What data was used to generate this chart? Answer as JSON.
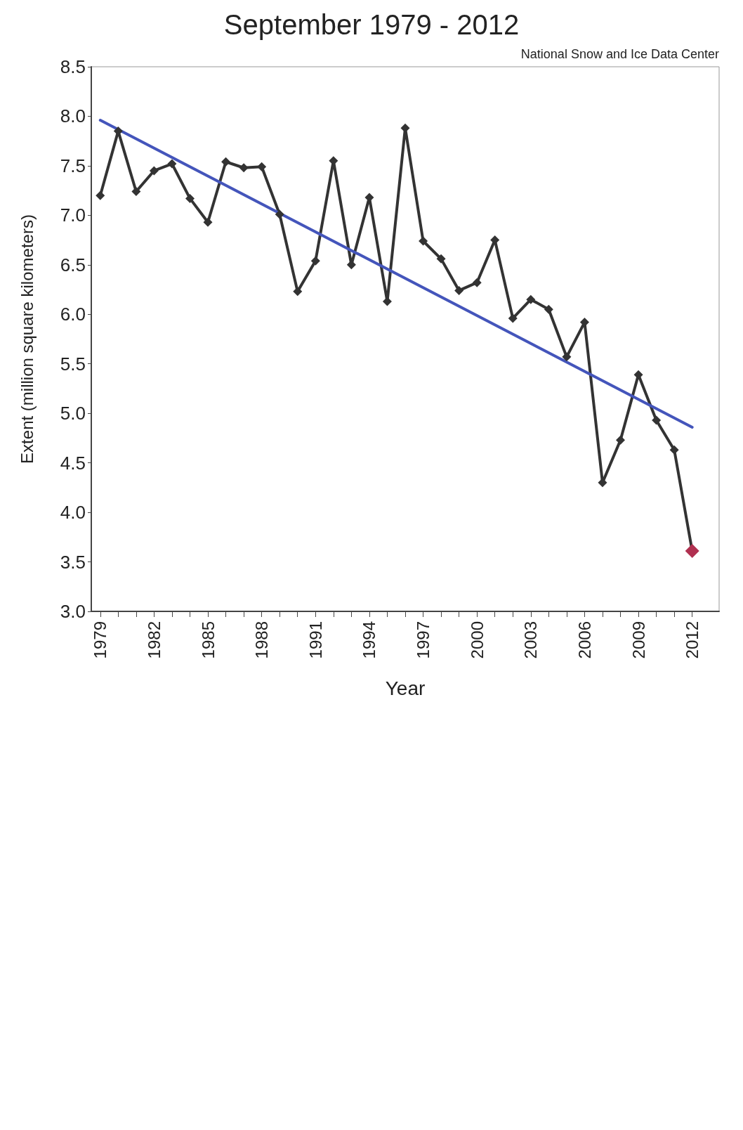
{
  "chart_data": {
    "type": "line",
    "title": "September 1979 - 2012",
    "xlabel": "Year",
    "ylabel": "Extent (million square kilometers)",
    "annotations": [
      "National Snow and Ice Data Center"
    ],
    "x": [
      1979,
      1980,
      1981,
      1982,
      1983,
      1984,
      1985,
      1986,
      1987,
      1988,
      1989,
      1990,
      1991,
      1992,
      1993,
      1994,
      1995,
      1996,
      1997,
      1998,
      1999,
      2000,
      2001,
      2002,
      2003,
      2004,
      2005,
      2006,
      2007,
      2008,
      2009,
      2010,
      2011,
      2012
    ],
    "series": [
      {
        "color": "#333333",
        "colors": [
          "#333333",
          "#333333",
          "#333333",
          "#333333",
          "#333333",
          "#333333",
          "#333333",
          "#333333",
          "#333333",
          "#333333",
          "#333333",
          "#333333",
          "#333333",
          "#333333",
          "#333333",
          "#333333",
          "#333333",
          "#333333",
          "#333333",
          "#333333",
          "#333333",
          "#333333",
          "#333333",
          "#333333",
          "#333333",
          "#333333",
          "#333333",
          "#333333",
          "#333333",
          "#333333",
          "#333333",
          "#333333",
          "#333333",
          "#b03050"
        ],
        "values": [
          7.2,
          7.85,
          7.24,
          7.45,
          7.52,
          7.17,
          6.93,
          7.54,
          7.48,
          7.49,
          7.01,
          6.23,
          6.54,
          7.55,
          6.5,
          7.18,
          6.13,
          7.88,
          6.74,
          6.56,
          6.24,
          6.32,
          6.75,
          5.96,
          6.15,
          6.05,
          5.57,
          5.92,
          4.3,
          4.73,
          5.39,
          4.93,
          4.63,
          3.61
        ]
      },
      {
        "type": "line",
        "marker": "none",
        "color": "#4455bb",
        "x": [
          1979,
          2012
        ],
        "values": [
          7.96,
          4.86
        ]
      }
    ],
    "marker": "diamond",
    "line_style": "solid",
    "xlim": [
      1978.5,
      2013.5
    ],
    "xticks": [
      1979,
      {
        "value": 1980,
        "label": null
      },
      {
        "value": 1981,
        "label": null
      },
      1982,
      {
        "value": 1983,
        "label": null
      },
      {
        "value": 1984,
        "label": null
      },
      1985,
      {
        "value": 1986,
        "label": null
      },
      {
        "value": 1987,
        "label": null
      },
      1988,
      {
        "value": 1989,
        "label": null
      },
      {
        "value": 1990,
        "label": null
      },
      1991,
      {
        "value": 1992,
        "label": null
      },
      {
        "value": 1993,
        "label": null
      },
      1994,
      {
        "value": 1995,
        "label": null
      },
      {
        "value": 1996,
        "label": null
      },
      1997,
      {
        "value": 1998,
        "label": null
      },
      {
        "value": 1999,
        "label": null
      },
      2000,
      {
        "value": 2001,
        "label": null
      },
      {
        "value": 2002,
        "label": null
      },
      2003,
      {
        "value": 2004,
        "label": null
      },
      {
        "value": 2005,
        "label": null
      },
      2006,
      {
        "value": 2007,
        "label": null
      },
      {
        "value": 2008,
        "label": null
      },
      2009,
      {
        "value": 2010,
        "label": null
      },
      {
        "value": 2011,
        "label": null
      },
      2012
    ],
    "ylim": [
      3.0,
      8.5
    ],
    "yticks": [
      {
        "value": 3,
        "label": "3.0"
      },
      3.5,
      {
        "value": 4,
        "label": "4.0"
      },
      4.5,
      {
        "value": 5,
        "label": "5.0"
      },
      5.5,
      {
        "value": 6,
        "label": "6.0"
      },
      6.5,
      {
        "value": 7,
        "label": "7.0"
      },
      7.5,
      {
        "value": 8,
        "label": "8.0"
      },
      8.5
    ]
  }
}
